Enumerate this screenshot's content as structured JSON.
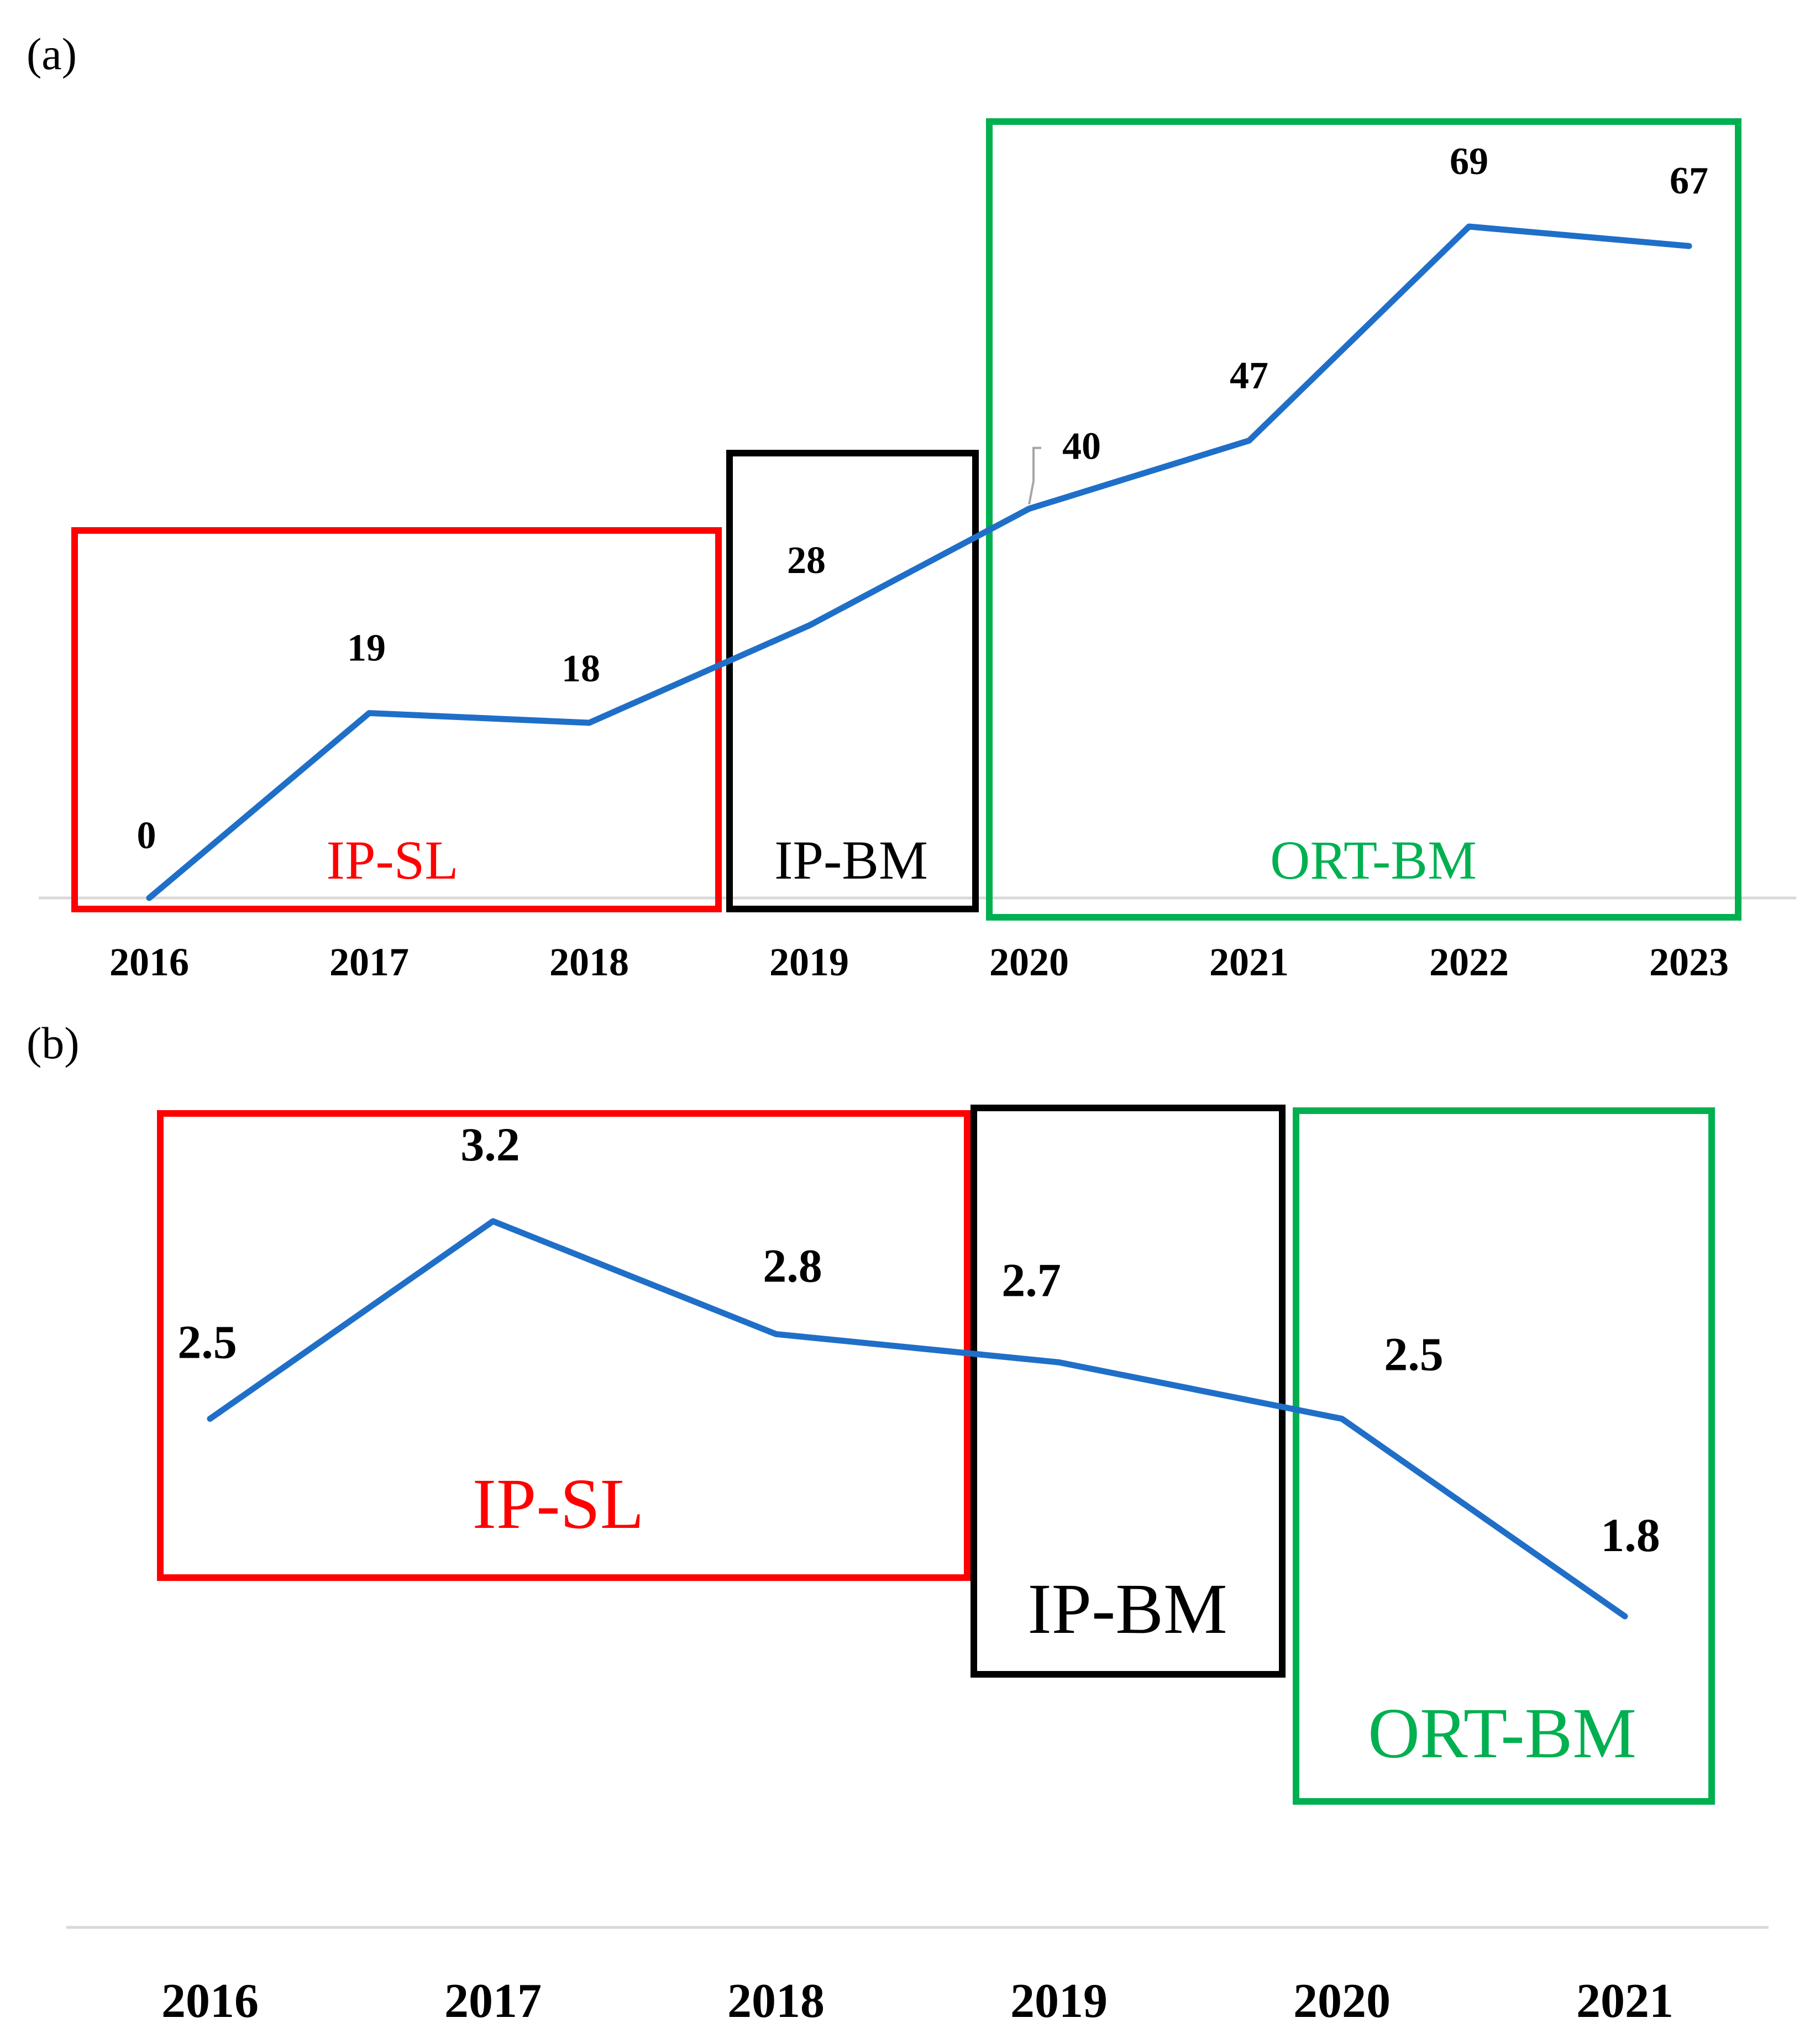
{
  "chart_data": [
    {
      "panel_label": "(a)",
      "type": "line",
      "categories": [
        "2016",
        "2017",
        "2018",
        "2019",
        "2020",
        "2021",
        "2022",
        "2023"
      ],
      "values": [
        0,
        19,
        18,
        28,
        40,
        47,
        69,
        67
      ],
      "value_labels": [
        "0",
        "19",
        "18",
        "28",
        "40",
        "47",
        "69",
        "67"
      ],
      "ylim": [
        0,
        69
      ],
      "title": "",
      "xlabel": "",
      "ylabel": "",
      "line_color": "#1f6fc8",
      "phases": [
        {
          "label": "IP-SL",
          "color": "#ff0000",
          "from": "2016",
          "to": "2018"
        },
        {
          "label": "IP-BM",
          "color": "#000000",
          "from": "2019",
          "to": "2019"
        },
        {
          "label": "ORT-BM",
          "color": "#00b050",
          "from": "2020",
          "to": "2023"
        }
      ]
    },
    {
      "panel_label": "(b)",
      "type": "line",
      "categories": [
        "2016",
        "2017",
        "2018",
        "2019",
        "2020",
        "2021"
      ],
      "values": [
        2.5,
        3.2,
        2.8,
        2.7,
        2.5,
        1.8
      ],
      "value_labels": [
        "2.5",
        "3.2",
        "2.8",
        "2.7",
        "2.5",
        "1.8"
      ],
      "ylim": [
        1.8,
        3.2
      ],
      "title": "",
      "xlabel": "",
      "ylabel": "",
      "line_color": "#1f6fc8",
      "phases": [
        {
          "label": "IP-SL",
          "color": "#ff0000",
          "from": "2016",
          "to": "2018"
        },
        {
          "label": "IP-BM",
          "color": "#000000",
          "from": "2019",
          "to": "2019"
        },
        {
          "label": "ORT-BM",
          "color": "#00b050",
          "from": "2020",
          "to": "2021"
        }
      ]
    }
  ]
}
